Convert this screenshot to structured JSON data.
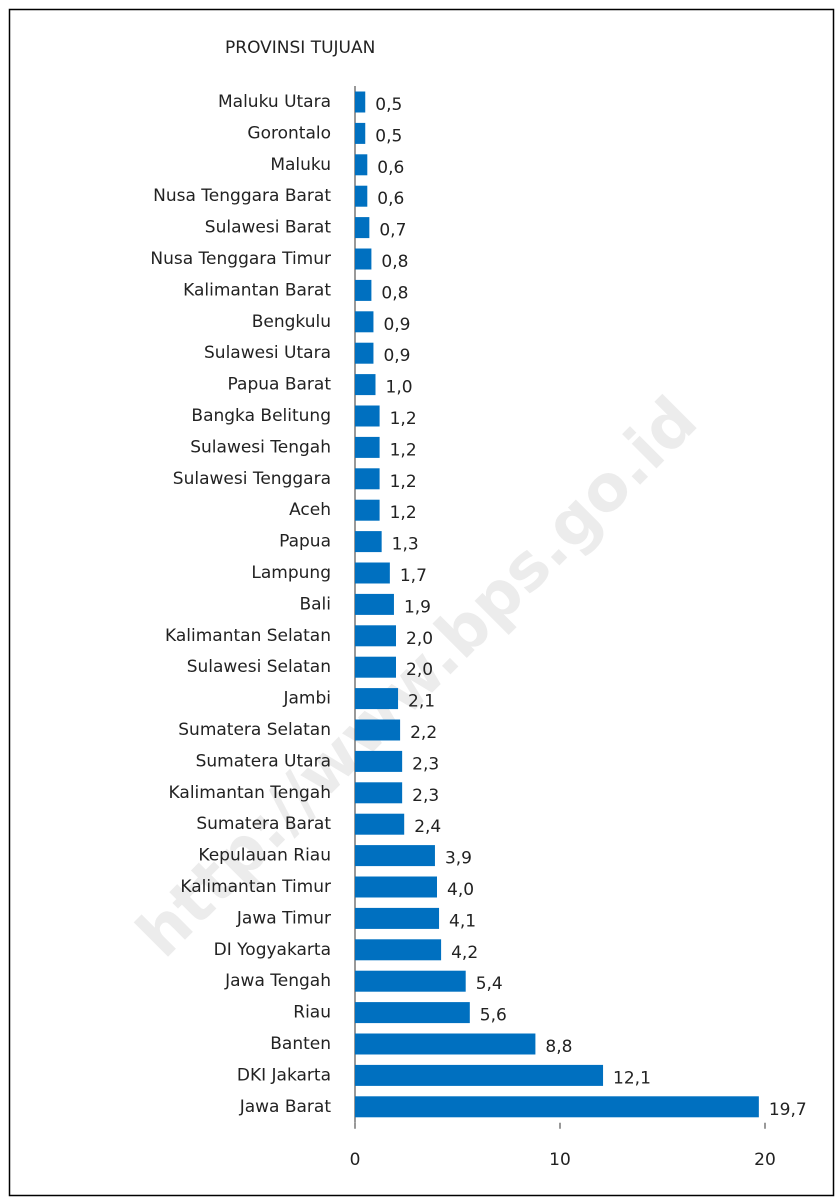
{
  "chart_data": {
    "type": "bar",
    "orientation": "horizontal",
    "title": "PROVINSI TUJUAN",
    "watermark": "http://www.bps.go.id",
    "categories": [
      "Maluku Utara",
      "Gorontalo",
      "Maluku",
      "Nusa Tenggara Barat",
      "Sulawesi Barat",
      "Nusa Tenggara Timur",
      "Kalimantan Barat",
      "Bengkulu",
      "Sulawesi Utara",
      "Papua Barat",
      "Bangka Belitung",
      "Sulawesi Tengah",
      "Sulawesi Tenggara",
      "Aceh",
      "Papua",
      "Lampung",
      "Bali",
      "Kalimantan Selatan",
      "Sulawesi Selatan",
      "Jambi",
      "Sumatera Selatan",
      "Sumatera Utara",
      "Kalimantan Tengah",
      "Sumatera Barat",
      "Kepulauan Riau",
      "Kalimantan Timur",
      "Jawa Timur",
      "DI Yogyakarta",
      "Jawa Tengah",
      "Riau",
      "Banten",
      "DKI Jakarta",
      "Jawa Barat"
    ],
    "values": [
      0.5,
      0.5,
      0.6,
      0.6,
      0.7,
      0.8,
      0.8,
      0.9,
      0.9,
      1.0,
      1.2,
      1.2,
      1.2,
      1.2,
      1.3,
      1.7,
      1.9,
      2.0,
      2.0,
      2.1,
      2.2,
      2.3,
      2.3,
      2.4,
      3.9,
      4.0,
      4.1,
      4.2,
      5.4,
      5.6,
      8.8,
      12.1,
      19.7
    ],
    "value_labels": [
      "0,5",
      "0,5",
      "0,6",
      "0,6",
      "0,7",
      "0,8",
      "0,8",
      "0,9",
      "0,9",
      "1,0",
      "1,2",
      "1,2",
      "1,2",
      "1,2",
      "1,3",
      "1,7",
      "1,9",
      "2,0",
      "2,0",
      "2,1",
      "2,2",
      "2,3",
      "2,3",
      "2,4",
      "3,9",
      "4,0",
      "4,1",
      "4,2",
      "5,4",
      "5,6",
      "8,8",
      "12,1",
      "19,7"
    ],
    "color": "#0070c0",
    "xlim": [
      0,
      20
    ],
    "xticks": [
      0,
      10,
      20
    ]
  }
}
